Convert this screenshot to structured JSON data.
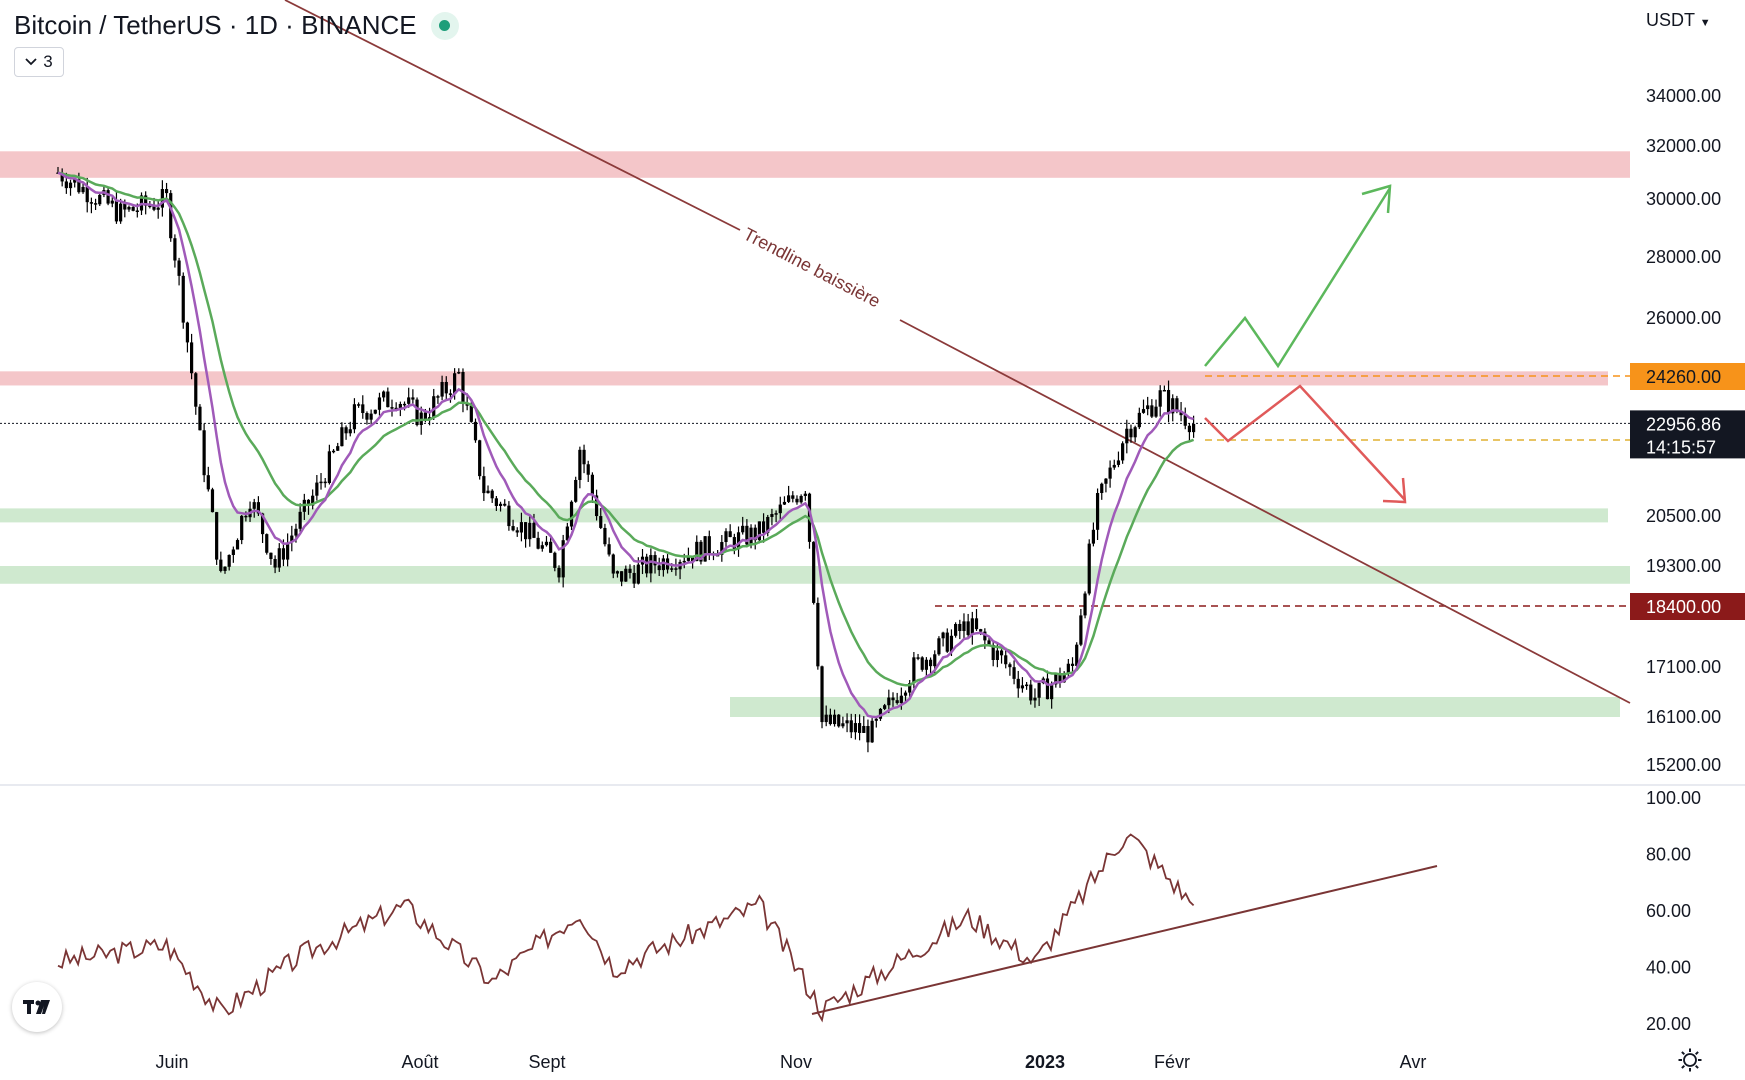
{
  "header": {
    "symbol_title": "Bitcoin / TetherUS · 1D · BINANCE",
    "indicator_count": "3"
  },
  "currency_selector": "USDT",
  "price_axis": {
    "ticks": [
      {
        "value": 34000,
        "label": "34000.00"
      },
      {
        "value": 32000,
        "label": "32000.00"
      },
      {
        "value": 30000,
        "label": "30000.00"
      },
      {
        "value": 28000,
        "label": "28000.00"
      },
      {
        "value": 26000,
        "label": "26000.00"
      },
      {
        "value": 20500,
        "label": "20500.00"
      },
      {
        "value": 19300,
        "label": "19300.00"
      },
      {
        "value": 17100,
        "label": "17100.00"
      },
      {
        "value": 16100,
        "label": "16100.00"
      },
      {
        "value": 15200,
        "label": "15200.00"
      }
    ],
    "price_labels": [
      {
        "value": 24260,
        "label": "24260.00",
        "bg": "#f7931a",
        "fg": "#131722"
      },
      {
        "value": 22500,
        "label": "22500.00",
        "bg": "#f7931a",
        "fg": "#131722"
      },
      {
        "value": 18400,
        "label": "18400.00",
        "bg": "#8b1a1a",
        "fg": "#ffffff"
      }
    ],
    "last_price": {
      "value": 22956.86,
      "label": "22956.86",
      "countdown": "14:15:57"
    }
  },
  "rsi_axis": {
    "ticks": [
      "100.00",
      "80.00",
      "60.00",
      "40.00",
      "20.00"
    ]
  },
  "time_axis": [
    {
      "label": "Juin",
      "bold": false
    },
    {
      "label": "Août",
      "bold": false
    },
    {
      "label": "Sept",
      "bold": false
    },
    {
      "label": "Nov",
      "bold": false
    },
    {
      "label": "2023",
      "bold": true
    },
    {
      "label": "Févr",
      "bold": false
    },
    {
      "label": "Avr",
      "bold": false
    }
  ],
  "annotations": {
    "trendline_label": "Trendline baissière"
  },
  "colors": {
    "candle": "#000000",
    "ema_fast": "#a05ab9",
    "ema_slow": "#5aaa5a",
    "rsi": "#7a3535",
    "resistance_zone": "#f4c6c9",
    "support_zone": "#cfe9cf",
    "bull_arrow": "#5cb85c",
    "bear_arrow": "#e05a5a"
  },
  "chart_data": {
    "type": "candlestick",
    "title": "Bitcoin / TetherUS · 1D · BINANCE",
    "timeframe": "1D",
    "date_range": [
      "2022-05",
      "2023-02"
    ],
    "ylim": [
      15000,
      36000
    ],
    "close_series_approx": [
      {
        "date": "2022-05-10",
        "close": 31000
      },
      {
        "date": "2022-05-25",
        "close": 29500
      },
      {
        "date": "2022-06-05",
        "close": 30000
      },
      {
        "date": "2022-06-13",
        "close": 22500
      },
      {
        "date": "2022-06-18",
        "close": 19000
      },
      {
        "date": "2022-06-25",
        "close": 21000
      },
      {
        "date": "2022-07-01",
        "close": 19300
      },
      {
        "date": "2022-07-10",
        "close": 21000
      },
      {
        "date": "2022-07-20",
        "close": 23200
      },
      {
        "date": "2022-07-30",
        "close": 23700
      },
      {
        "date": "2022-08-05",
        "close": 23100
      },
      {
        "date": "2022-08-14",
        "close": 24300
      },
      {
        "date": "2022-08-20",
        "close": 21200
      },
      {
        "date": "2022-09-07",
        "close": 19300
      },
      {
        "date": "2022-09-12",
        "close": 22300
      },
      {
        "date": "2022-09-20",
        "close": 19000
      },
      {
        "date": "2022-10-01",
        "close": 19400
      },
      {
        "date": "2022-10-25",
        "close": 20100
      },
      {
        "date": "2022-11-05",
        "close": 21300
      },
      {
        "date": "2022-11-09",
        "close": 16000
      },
      {
        "date": "2022-11-21",
        "close": 15800
      },
      {
        "date": "2022-12-01",
        "close": 17100
      },
      {
        "date": "2022-12-14",
        "close": 18000
      },
      {
        "date": "2022-12-30",
        "close": 16500
      },
      {
        "date": "2023-01-08",
        "close": 17100
      },
      {
        "date": "2023-01-14",
        "close": 20800
      },
      {
        "date": "2023-01-21",
        "close": 22800
      },
      {
        "date": "2023-01-29",
        "close": 23700
      },
      {
        "date": "2023-02-06",
        "close": 22956.86
      }
    ],
    "zones": [
      {
        "type": "resistance",
        "from": 30800,
        "to": 31800
      },
      {
        "type": "resistance",
        "from": 24000,
        "to": 24400
      },
      {
        "type": "support",
        "from": 20400,
        "to": 20700
      },
      {
        "type": "support",
        "from": 18900,
        "to": 19300
      },
      {
        "type": "support",
        "from": 16100,
        "to": 16500
      }
    ],
    "levels": [
      24260,
      22500,
      18400
    ],
    "moving_averages": 2,
    "rsi_panel": {
      "ylim": [
        15,
        100
      ],
      "ticks": [
        100,
        80,
        60,
        40,
        20
      ],
      "series_approx": [
        {
          "date": "2022-05-10",
          "value": 42
        },
        {
          "date": "2022-06-05",
          "value": 48
        },
        {
          "date": "2022-06-18",
          "value": 24
        },
        {
          "date": "2022-07-08",
          "value": 45
        },
        {
          "date": "2022-08-01",
          "value": 62
        },
        {
          "date": "2022-08-22",
          "value": 35
        },
        {
          "date": "2022-09-12",
          "value": 60
        },
        {
          "date": "2022-09-20",
          "value": 40
        },
        {
          "date": "2022-10-25",
          "value": 62
        },
        {
          "date": "2022-11-09",
          "value": 25
        },
        {
          "date": "2022-12-14",
          "value": 58
        },
        {
          "date": "2022-12-30",
          "value": 42
        },
        {
          "date": "2023-01-21",
          "value": 88
        },
        {
          "date": "2023-02-06",
          "value": 62
        }
      ]
    }
  }
}
